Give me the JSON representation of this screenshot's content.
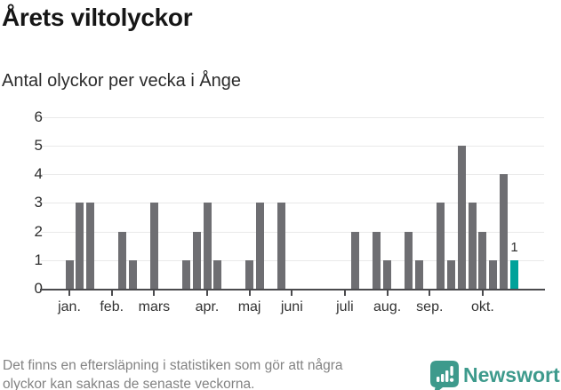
{
  "header": {
    "title": "Årets viltolyckor",
    "subtitle": "Antal olyckor per vecka i Ånge"
  },
  "chart_data": {
    "type": "bar",
    "title": "Årets viltolyckor",
    "subtitle": "Antal olyckor per vecka i Ånge",
    "x_unit": "week",
    "values": [
      1,
      3,
      3,
      0,
      0,
      2,
      1,
      0,
      3,
      0,
      0,
      1,
      2,
      3,
      1,
      0,
      0,
      1,
      3,
      0,
      3,
      0,
      0,
      0,
      0,
      0,
      0,
      2,
      0,
      2,
      1,
      0,
      2,
      1,
      0,
      3,
      1,
      5,
      3,
      2,
      1,
      4,
      1
    ],
    "highlight": {
      "index": 42,
      "value_label": "1"
    },
    "months": [
      {
        "label": "jan.",
        "week": 0
      },
      {
        "label": "feb.",
        "week": 4
      },
      {
        "label": "mars",
        "week": 8
      },
      {
        "label": "apr.",
        "week": 13
      },
      {
        "label": "maj",
        "week": 17
      },
      {
        "label": "juni",
        "week": 21
      },
      {
        "label": "juli",
        "week": 26
      },
      {
        "label": "aug.",
        "week": 30
      },
      {
        "label": "sep.",
        "week": 34
      },
      {
        "label": "okt.",
        "week": 39
      }
    ],
    "ylim": [
      0,
      6
    ],
    "yticks": [
      0,
      1,
      2,
      3,
      4,
      5,
      6
    ],
    "grid": true,
    "legend": false
  },
  "footer": {
    "note_lines": [
      "Det finns en eftersläpning i statistiken som gör att några",
      "olyckor kan saknas de senaste veckorna."
    ],
    "brand": "Newsworthy"
  },
  "colors": {
    "bar": "#6e6e72",
    "highlight": "#00a29a",
    "grid": "#e9e9e9",
    "axis": "#4a4a4d",
    "axis_text": "#2e2e2e",
    "title_text": "#161616",
    "footer_text": "#838383",
    "brand": "#3d9a8c"
  }
}
